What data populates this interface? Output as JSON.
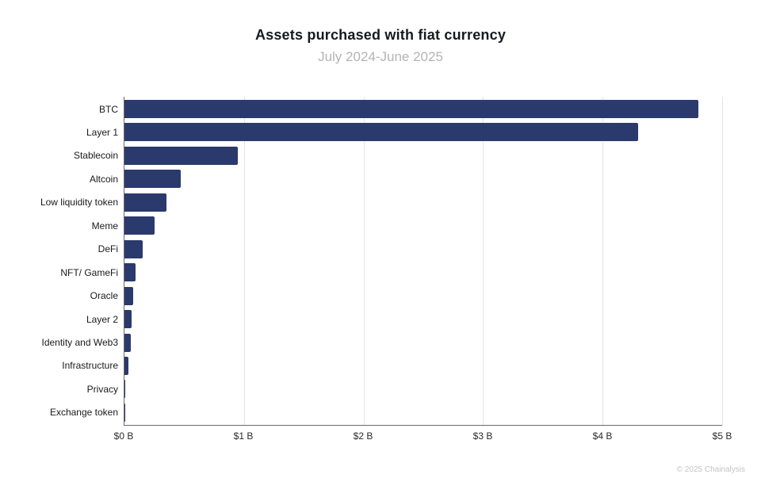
{
  "title": "Assets purchased with fiat currency",
  "subtitle": "July 2024-June 2025",
  "footer": "© 2025 Chainalysis",
  "colors": {
    "bar": "#2b3a6c",
    "axis": "#6b6b6b",
    "gridline": "#e4e4e4",
    "title_text": "#17191f",
    "subtitle_text": "#b4b4b4",
    "category_label": "#1a1a1a",
    "tick_label": "#2b2b2b",
    "footer_text": "#c4c4c4"
  },
  "chart_data": {
    "type": "bar",
    "orientation": "horizontal",
    "title": "Assets purchased with fiat currency",
    "subtitle": "July 2024-June 2025",
    "xlabel": "",
    "ylabel": "",
    "unit": "USD billions",
    "xlim": [
      0,
      5
    ],
    "grid": true,
    "legend": false,
    "tick_labels": [
      "$0 B",
      "$1 B",
      "$2 B",
      "$3 B",
      "$4 B",
      "$5 B"
    ],
    "categories": [
      "BTC",
      "Layer 1",
      "Stablecoin",
      "Altcoin",
      "Low liquidity token",
      "Meme",
      "DeFi",
      "NFT/ GameFi",
      "Oracle",
      "Layer 2",
      "Identity and Web3",
      "Infrastructure",
      "Privacy",
      "Exchange token"
    ],
    "values": [
      4.8,
      4.3,
      0.95,
      0.47,
      0.35,
      0.25,
      0.15,
      0.09,
      0.07,
      0.06,
      0.05,
      0.03,
      0.005,
      0.004
    ]
  }
}
